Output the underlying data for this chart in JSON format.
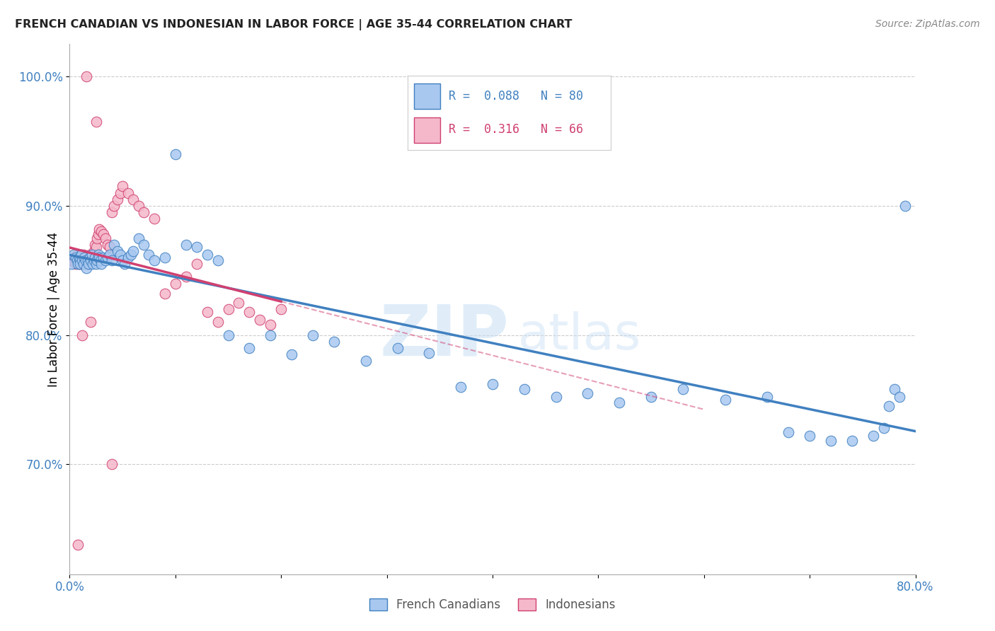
{
  "title": "FRENCH CANADIAN VS INDONESIAN IN LABOR FORCE | AGE 35-44 CORRELATION CHART",
  "source": "Source: ZipAtlas.com",
  "ylabel": "In Labor Force | Age 35-44",
  "xlim": [
    0.0,
    0.8
  ],
  "ylim": [
    0.615,
    1.025
  ],
  "xticks": [
    0.0,
    0.1,
    0.2,
    0.3,
    0.4,
    0.5,
    0.6,
    0.7,
    0.8
  ],
  "xticklabels": [
    "0.0%",
    "",
    "",
    "",
    "",
    "",
    "",
    "",
    "80.0%"
  ],
  "ytick_positions": [
    0.7,
    0.8,
    0.9,
    1.0
  ],
  "ytick_labels": [
    "70.0%",
    "80.0%",
    "90.0%",
    "100.0%"
  ],
  "blue_R": "0.088",
  "blue_N": "80",
  "pink_R": "0.316",
  "pink_N": "66",
  "blue_color": "#a8c8f0",
  "pink_color": "#f5b8cb",
  "blue_line_color": "#4080c0",
  "pink_line_color": "#d04070",
  "watermark_zip": "ZIP",
  "watermark_atlas": "atlas",
  "blue_scatter_x": [
    0.002,
    0.004,
    0.006,
    0.007,
    0.008,
    0.009,
    0.01,
    0.01,
    0.011,
    0.012,
    0.013,
    0.014,
    0.015,
    0.016,
    0.017,
    0.018,
    0.019,
    0.02,
    0.021,
    0.022,
    0.023,
    0.024,
    0.025,
    0.026,
    0.027,
    0.028,
    0.029,
    0.03,
    0.032,
    0.034,
    0.036,
    0.038,
    0.04,
    0.042,
    0.045,
    0.048,
    0.05,
    0.052,
    0.055,
    0.058,
    0.06,
    0.065,
    0.07,
    0.075,
    0.08,
    0.09,
    0.1,
    0.11,
    0.12,
    0.13,
    0.14,
    0.15,
    0.17,
    0.19,
    0.21,
    0.23,
    0.25,
    0.28,
    0.31,
    0.34,
    0.37,
    0.4,
    0.43,
    0.46,
    0.49,
    0.52,
    0.55,
    0.58,
    0.62,
    0.66,
    0.68,
    0.7,
    0.72,
    0.74,
    0.76,
    0.77,
    0.775,
    0.78,
    0.785,
    0.79
  ],
  "blue_scatter_y": [
    0.855,
    0.862,
    0.86,
    0.858,
    0.855,
    0.86,
    0.858,
    0.855,
    0.862,
    0.858,
    0.855,
    0.86,
    0.858,
    0.852,
    0.858,
    0.855,
    0.86,
    0.858,
    0.862,
    0.855,
    0.858,
    0.86,
    0.855,
    0.858,
    0.862,
    0.86,
    0.858,
    0.855,
    0.86,
    0.858,
    0.86,
    0.862,
    0.858,
    0.87,
    0.865,
    0.862,
    0.858,
    0.855,
    0.86,
    0.862,
    0.865,
    0.875,
    0.87,
    0.862,
    0.858,
    0.86,
    0.94,
    0.87,
    0.868,
    0.862,
    0.858,
    0.8,
    0.79,
    0.8,
    0.785,
    0.8,
    0.795,
    0.78,
    0.79,
    0.786,
    0.76,
    0.762,
    0.758,
    0.752,
    0.755,
    0.748,
    0.752,
    0.758,
    0.75,
    0.752,
    0.725,
    0.722,
    0.718,
    0.718,
    0.722,
    0.728,
    0.745,
    0.758,
    0.752,
    0.9
  ],
  "pink_scatter_x": [
    0.002,
    0.003,
    0.004,
    0.005,
    0.006,
    0.007,
    0.008,
    0.009,
    0.01,
    0.01,
    0.011,
    0.012,
    0.012,
    0.013,
    0.013,
    0.014,
    0.015,
    0.016,
    0.016,
    0.017,
    0.018,
    0.018,
    0.019,
    0.02,
    0.02,
    0.021,
    0.022,
    0.023,
    0.024,
    0.025,
    0.026,
    0.027,
    0.028,
    0.03,
    0.032,
    0.034,
    0.036,
    0.038,
    0.04,
    0.042,
    0.045,
    0.048,
    0.05,
    0.055,
    0.06,
    0.065,
    0.07,
    0.08,
    0.09,
    0.1,
    0.11,
    0.12,
    0.13,
    0.14,
    0.15,
    0.16,
    0.17,
    0.18,
    0.19,
    0.2,
    0.016,
    0.025,
    0.04,
    0.012,
    0.02,
    0.008
  ],
  "pink_scatter_y": [
    0.858,
    0.858,
    0.86,
    0.858,
    0.855,
    0.862,
    0.858,
    0.855,
    0.858,
    0.855,
    0.86,
    0.858,
    0.855,
    0.862,
    0.858,
    0.86,
    0.858,
    0.855,
    0.858,
    0.86,
    0.858,
    0.855,
    0.862,
    0.858,
    0.86,
    0.858,
    0.862,
    0.865,
    0.87,
    0.868,
    0.875,
    0.878,
    0.882,
    0.88,
    0.878,
    0.875,
    0.87,
    0.868,
    0.895,
    0.9,
    0.905,
    0.91,
    0.915,
    0.91,
    0.905,
    0.9,
    0.895,
    0.89,
    0.832,
    0.84,
    0.845,
    0.855,
    0.818,
    0.81,
    0.82,
    0.825,
    0.818,
    0.812,
    0.808,
    0.82,
    1.0,
    0.965,
    0.7,
    0.8,
    0.81,
    0.638
  ]
}
